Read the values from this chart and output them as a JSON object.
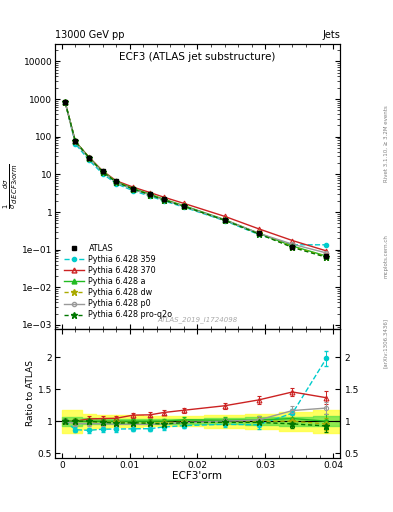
{
  "title": "ECF3 (ATLAS jet substructure)",
  "header_left": "13000 GeV pp",
  "header_right": "Jets",
  "atlas_label": "ATLAS_2019_I1724098",
  "rivet_label": "Rivet 3.1.10, ≥ 3.2M events",
  "arxiv_label": "[arXiv:1306.3436]",
  "mcplots_label": "mcplots.cern.ch",
  "x": [
    0.0005,
    0.002,
    0.004,
    0.006,
    0.008,
    0.0105,
    0.013,
    0.015,
    0.018,
    0.024,
    0.029,
    0.034,
    0.039
  ],
  "atlas_y": [
    820,
    75,
    28,
    12,
    6.5,
    4.2,
    3.0,
    2.2,
    1.45,
    0.62,
    0.27,
    0.12,
    0.068
  ],
  "atlas_yerr_lo": [
    80,
    7,
    2.5,
    1.0,
    0.5,
    0.35,
    0.25,
    0.18,
    0.12,
    0.05,
    0.022,
    0.01,
    0.006
  ],
  "atlas_yerr_hi": [
    80,
    7,
    2.5,
    1.0,
    0.5,
    0.35,
    0.25,
    0.18,
    0.12,
    0.05,
    0.022,
    0.01,
    0.006
  ],
  "py359_y": [
    820,
    65,
    24,
    10.5,
    5.7,
    3.7,
    2.65,
    2.0,
    1.35,
    0.59,
    0.255,
    0.135,
    0.135
  ],
  "py370_y": [
    820,
    75,
    29,
    12.5,
    6.8,
    4.6,
    3.3,
    2.5,
    1.7,
    0.77,
    0.36,
    0.175,
    0.093
  ],
  "pya_y": [
    820,
    75,
    28,
    12,
    6.5,
    4.2,
    3.0,
    2.2,
    1.48,
    0.63,
    0.275,
    0.125,
    0.068
  ],
  "pydw_y": [
    820,
    75,
    28,
    11.8,
    6.4,
    4.1,
    2.9,
    2.15,
    1.43,
    0.61,
    0.27,
    0.12,
    0.065
  ],
  "pyp0_y": [
    820,
    72,
    27,
    11.5,
    6.2,
    4.0,
    2.85,
    2.1,
    1.42,
    0.62,
    0.275,
    0.14,
    0.082
  ],
  "pyproq2o_y": [
    820,
    75,
    28,
    11.8,
    6.3,
    4.1,
    2.9,
    2.1,
    1.42,
    0.61,
    0.265,
    0.115,
    0.063
  ],
  "rx": [
    0.0005,
    0.002,
    0.004,
    0.006,
    0.008,
    0.0105,
    0.013,
    0.015,
    0.018,
    0.024,
    0.029,
    0.034,
    0.039
  ],
  "band_x_edges": [
    0.0,
    0.001,
    0.003,
    0.005,
    0.007,
    0.009,
    0.012,
    0.014,
    0.016,
    0.021,
    0.027,
    0.032,
    0.037,
    0.041
  ],
  "band_outer": [
    0.18,
    0.18,
    0.12,
    0.1,
    0.09,
    0.09,
    0.08,
    0.08,
    0.08,
    0.1,
    0.12,
    0.15,
    0.18
  ],
  "band_inner": [
    0.07,
    0.07,
    0.05,
    0.04,
    0.04,
    0.04,
    0.04,
    0.04,
    0.04,
    0.05,
    0.06,
    0.07,
    0.08
  ],
  "ratio_py359": [
    1.0,
    0.867,
    0.857,
    0.875,
    0.877,
    0.881,
    0.883,
    0.909,
    0.931,
    0.952,
    0.944,
    1.125,
    1.985
  ],
  "ratio_py370": [
    1.0,
    1.0,
    1.036,
    1.042,
    1.046,
    1.095,
    1.1,
    1.136,
    1.172,
    1.242,
    1.333,
    1.458,
    1.368
  ],
  "ratio_pya": [
    1.0,
    1.0,
    1.0,
    1.0,
    1.0,
    1.0,
    1.0,
    1.0,
    1.021,
    1.016,
    1.019,
    1.042,
    1.0
  ],
  "ratio_pydw": [
    1.0,
    1.0,
    1.0,
    0.983,
    0.985,
    0.976,
    0.967,
    0.977,
    0.986,
    0.984,
    1.0,
    1.0,
    0.956
  ],
  "ratio_pyp0": [
    1.0,
    0.96,
    0.964,
    0.958,
    0.954,
    0.952,
    0.95,
    0.955,
    0.979,
    1.0,
    1.019,
    1.167,
    1.206
  ],
  "ratio_pyproq2o": [
    1.0,
    1.0,
    1.0,
    0.983,
    0.969,
    0.976,
    0.967,
    0.955,
    0.979,
    0.984,
    0.981,
    0.958,
    0.926
  ],
  "ratio_yerr_py359": [
    0.03,
    0.04,
    0.04,
    0.04,
    0.04,
    0.04,
    0.04,
    0.04,
    0.04,
    0.05,
    0.06,
    0.07,
    0.12
  ],
  "ratio_yerr_py370": [
    0.03,
    0.04,
    0.04,
    0.04,
    0.04,
    0.04,
    0.04,
    0.04,
    0.04,
    0.05,
    0.06,
    0.07,
    0.1
  ],
  "ratio_yerr_pya": [
    0.03,
    0.04,
    0.04,
    0.04,
    0.04,
    0.04,
    0.04,
    0.04,
    0.04,
    0.05,
    0.06,
    0.07,
    0.12
  ],
  "ratio_yerr_pydw": [
    0.03,
    0.04,
    0.04,
    0.04,
    0.04,
    0.04,
    0.04,
    0.04,
    0.04,
    0.05,
    0.06,
    0.07,
    0.1
  ],
  "ratio_yerr_pyp0": [
    0.03,
    0.04,
    0.04,
    0.04,
    0.04,
    0.04,
    0.04,
    0.04,
    0.04,
    0.05,
    0.06,
    0.07,
    0.1
  ],
  "ratio_yerr_proq2o": [
    0.03,
    0.04,
    0.04,
    0.04,
    0.04,
    0.04,
    0.04,
    0.04,
    0.04,
    0.05,
    0.06,
    0.07,
    0.1
  ],
  "color_py359": "#00CCCC",
  "color_py370": "#CC2222",
  "color_pya": "#22BB22",
  "color_pydw": "#AAAA00",
  "color_pyp0": "#999999",
  "color_pyproq2o": "#007700",
  "color_atlas": "#000000",
  "band_yellow": "#FFFF44",
  "band_green": "#44DD44",
  "ylim_main": [
    0.0008,
    30000.0
  ],
  "ylim_ratio": [
    0.42,
    2.45
  ],
  "xlim": [
    -0.001,
    0.041
  ]
}
